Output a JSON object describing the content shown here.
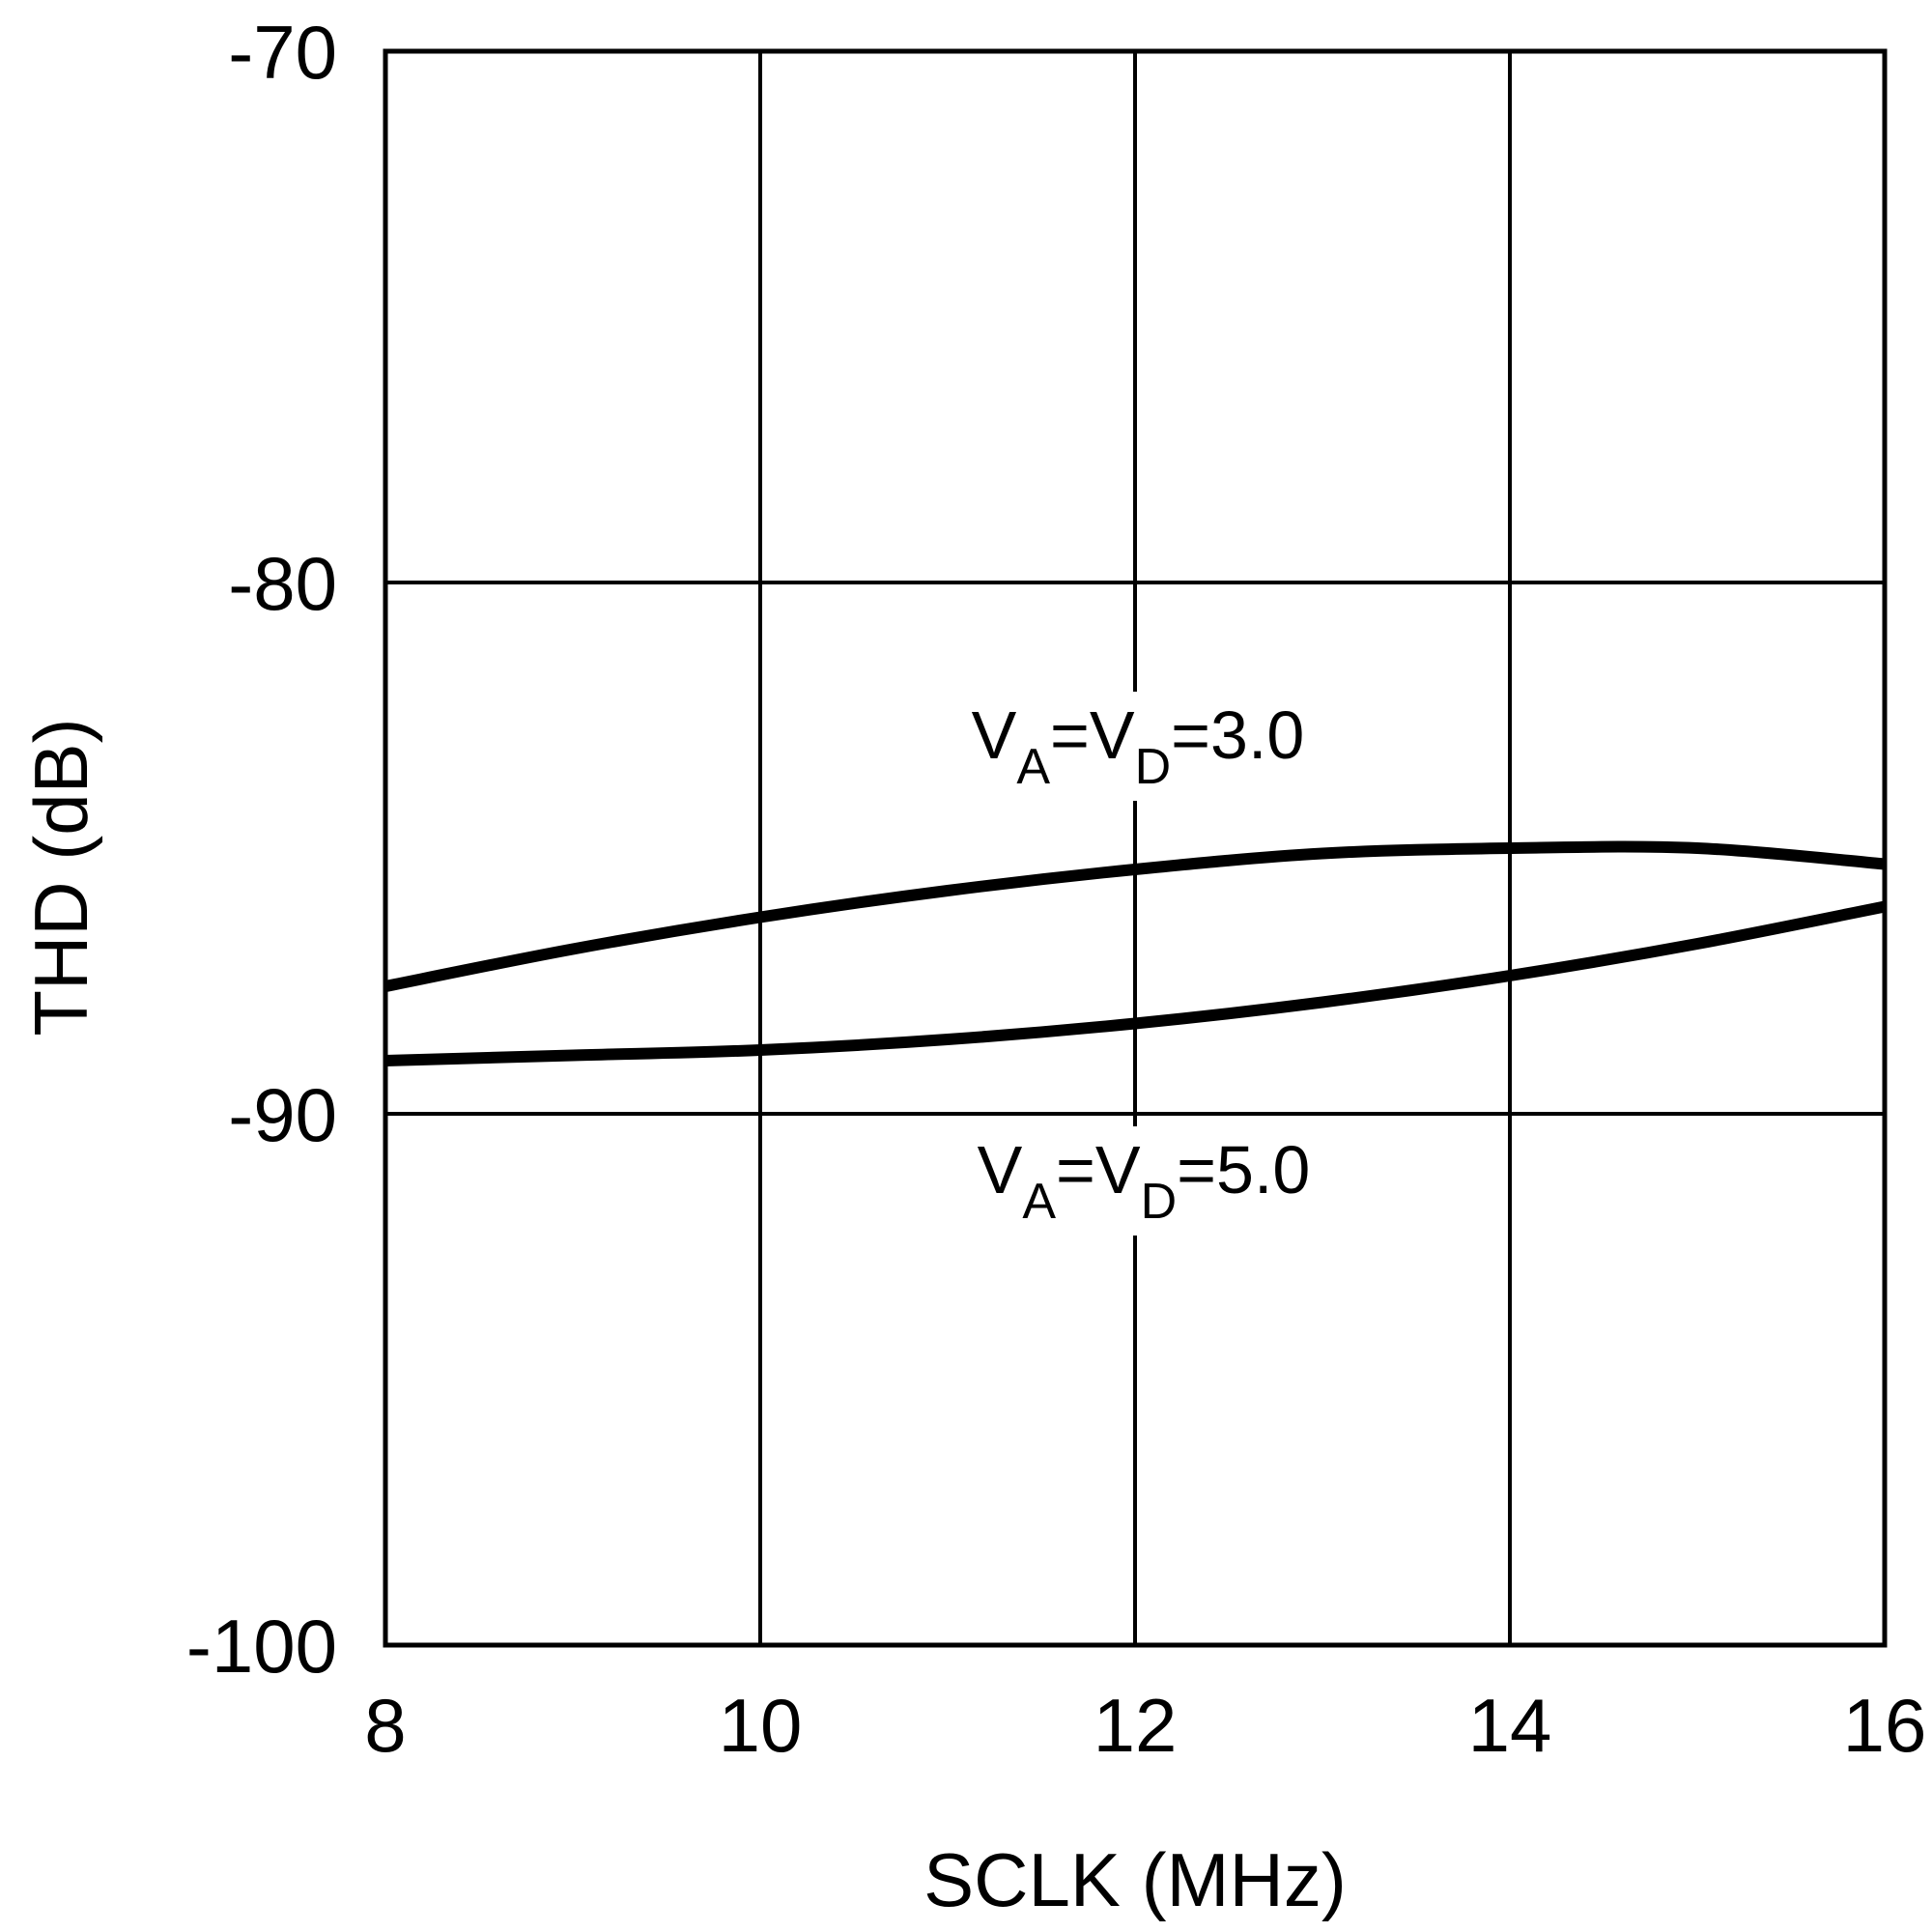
{
  "chart_data": {
    "type": "line",
    "title": "",
    "xlabel": "SCLK (MHz)",
    "ylabel": "THD (dB)",
    "xlim": [
      8,
      16
    ],
    "ylim": [
      -100,
      -70
    ],
    "xticks": [
      "8",
      "10",
      "12",
      "14",
      "16"
    ],
    "yticks": [
      "-70",
      "-80",
      "-90",
      "-100"
    ],
    "grid": true,
    "legend": "none",
    "series": [
      {
        "name": "VA=VD=3.0",
        "x": [
          8,
          9,
          10,
          11,
          12,
          13,
          14,
          15,
          16
        ],
        "y": [
          -87.6,
          -86.9,
          -86.3,
          -85.8,
          -85.4,
          -85.1,
          -85.0,
          -85.0,
          -85.3
        ]
      },
      {
        "name": "VA=VD=5.0",
        "x": [
          8,
          9,
          10,
          11,
          12,
          13,
          14,
          15,
          16
        ],
        "y": [
          -89.0,
          -88.9,
          -88.8,
          -88.6,
          -88.3,
          -87.9,
          -87.4,
          -86.8,
          -86.1
        ]
      }
    ],
    "annotations": [
      {
        "parts": [
          {
            "t": "V",
            "sub": false
          },
          {
            "t": "A",
            "sub": true
          },
          {
            "t": "=V",
            "sub": false
          },
          {
            "t": "D",
            "sub": true
          },
          {
            "t": "=3.0",
            "sub": false
          }
        ]
      },
      {
        "parts": [
          {
            "t": "V",
            "sub": false
          },
          {
            "t": "A",
            "sub": true
          },
          {
            "t": "=V",
            "sub": false
          },
          {
            "t": "D",
            "sub": true
          },
          {
            "t": "=5.0",
            "sub": false
          }
        ]
      }
    ],
    "colors": {
      "line": "#000000",
      "grid": "#000000",
      "background": "#ffffff"
    }
  }
}
